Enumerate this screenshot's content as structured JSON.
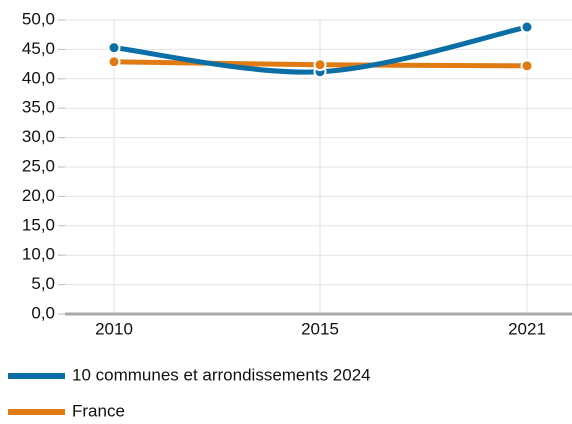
{
  "chart_data": {
    "type": "line",
    "categories": [
      "2010",
      "2015",
      "2021"
    ],
    "series": [
      {
        "name": "10 communes et arrondissements 2024",
        "color": "#0b6fa6",
        "values": [
          45.3,
          41.2,
          48.8
        ]
      },
      {
        "name": "France",
        "color": "#e07b14",
        "values": [
          42.9,
          42.4,
          42.2
        ]
      }
    ],
    "ylim": [
      0,
      50
    ],
    "yticks": [
      {
        "value": 0,
        "label": "0,0"
      },
      {
        "value": 5,
        "label": "5,0"
      },
      {
        "value": 10,
        "label": "10,0"
      },
      {
        "value": 15,
        "label": "15,0"
      },
      {
        "value": 20,
        "label": "20,0"
      },
      {
        "value": 25,
        "label": "25,0"
      },
      {
        "value": 30,
        "label": "30,0"
      },
      {
        "value": 35,
        "label": "35,0"
      },
      {
        "value": 40,
        "label": "40,0"
      },
      {
        "value": 45,
        "label": "45,0"
      },
      {
        "value": 50,
        "label": "50,0"
      }
    ],
    "grid": true,
    "smooth": true
  }
}
